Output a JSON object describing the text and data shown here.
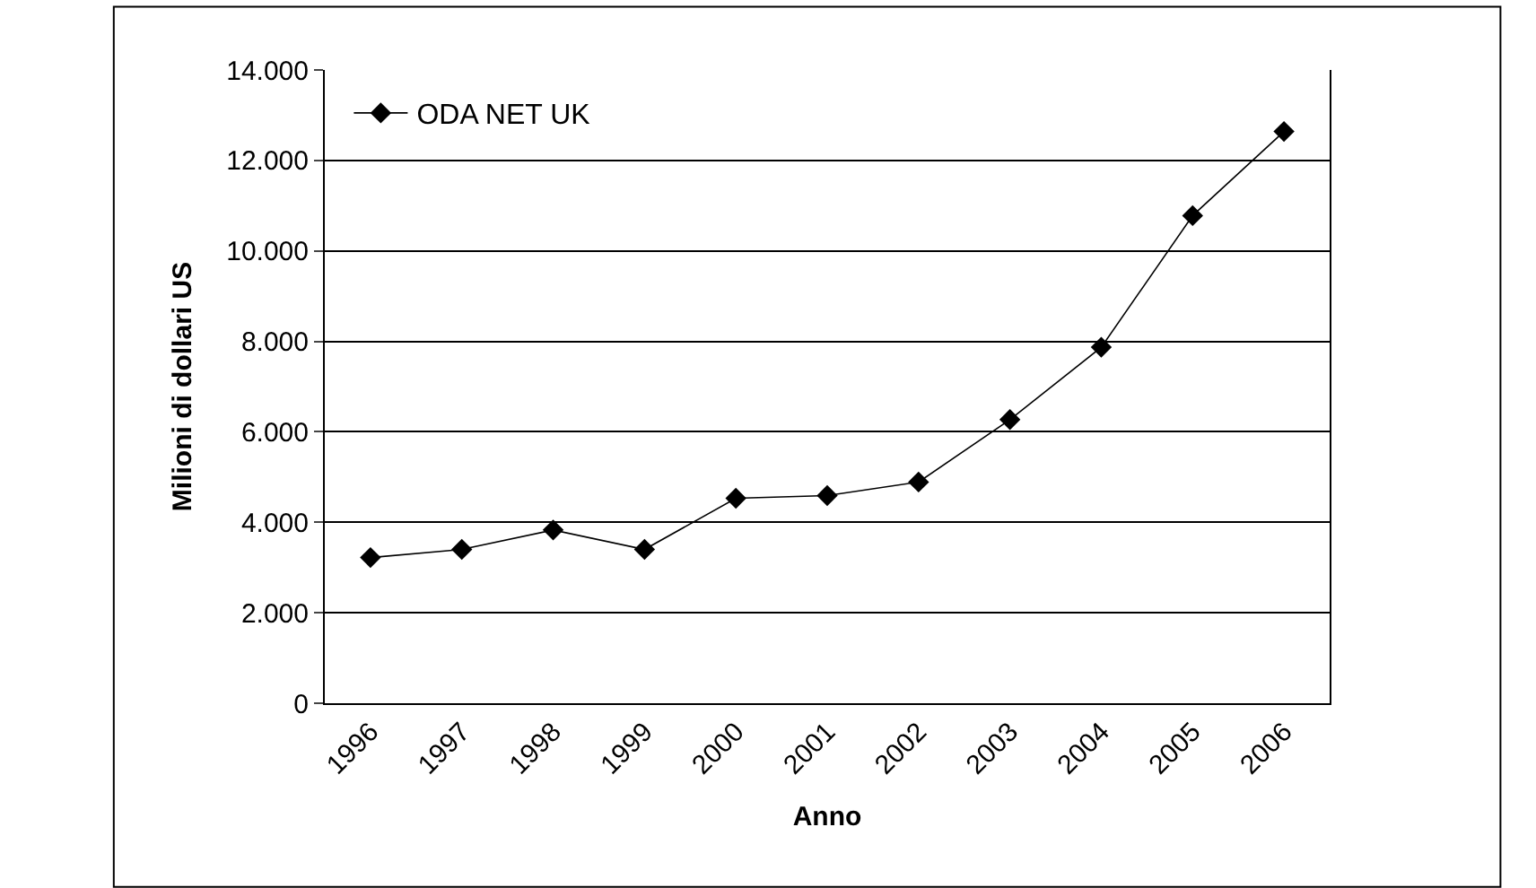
{
  "chart_data": {
    "type": "line",
    "xlabel": "Anno",
    "ylabel": "Milioni di dollari US",
    "categories": [
      "1996",
      "1997",
      "1998",
      "1999",
      "2000",
      "2001",
      "2002",
      "2003",
      "2004",
      "2005",
      "2006"
    ],
    "series": [
      {
        "name": "ODA NET UK",
        "color": "#000000",
        "values": [
          3220,
          3400,
          3830,
          3400,
          4530,
          4590,
          4890,
          6270,
          7870,
          10780,
          12640
        ]
      }
    ],
    "ylim": [
      0,
      14000
    ],
    "yticks": [
      0,
      {
        "value": 2000,
        "label": "2.000"
      },
      {
        "value": 4000,
        "label": "4.000"
      },
      {
        "value": 6000,
        "label": "6.000"
      },
      {
        "value": 8000,
        "label": "8.000"
      },
      {
        "value": 10000,
        "label": "10.000"
      },
      {
        "value": 12000,
        "label": "12.000"
      },
      {
        "value": 14000,
        "label": "14.000"
      }
    ],
    "grid": "y",
    "legend": "top left",
    "marker": "diamond",
    "line_style": "solid"
  }
}
